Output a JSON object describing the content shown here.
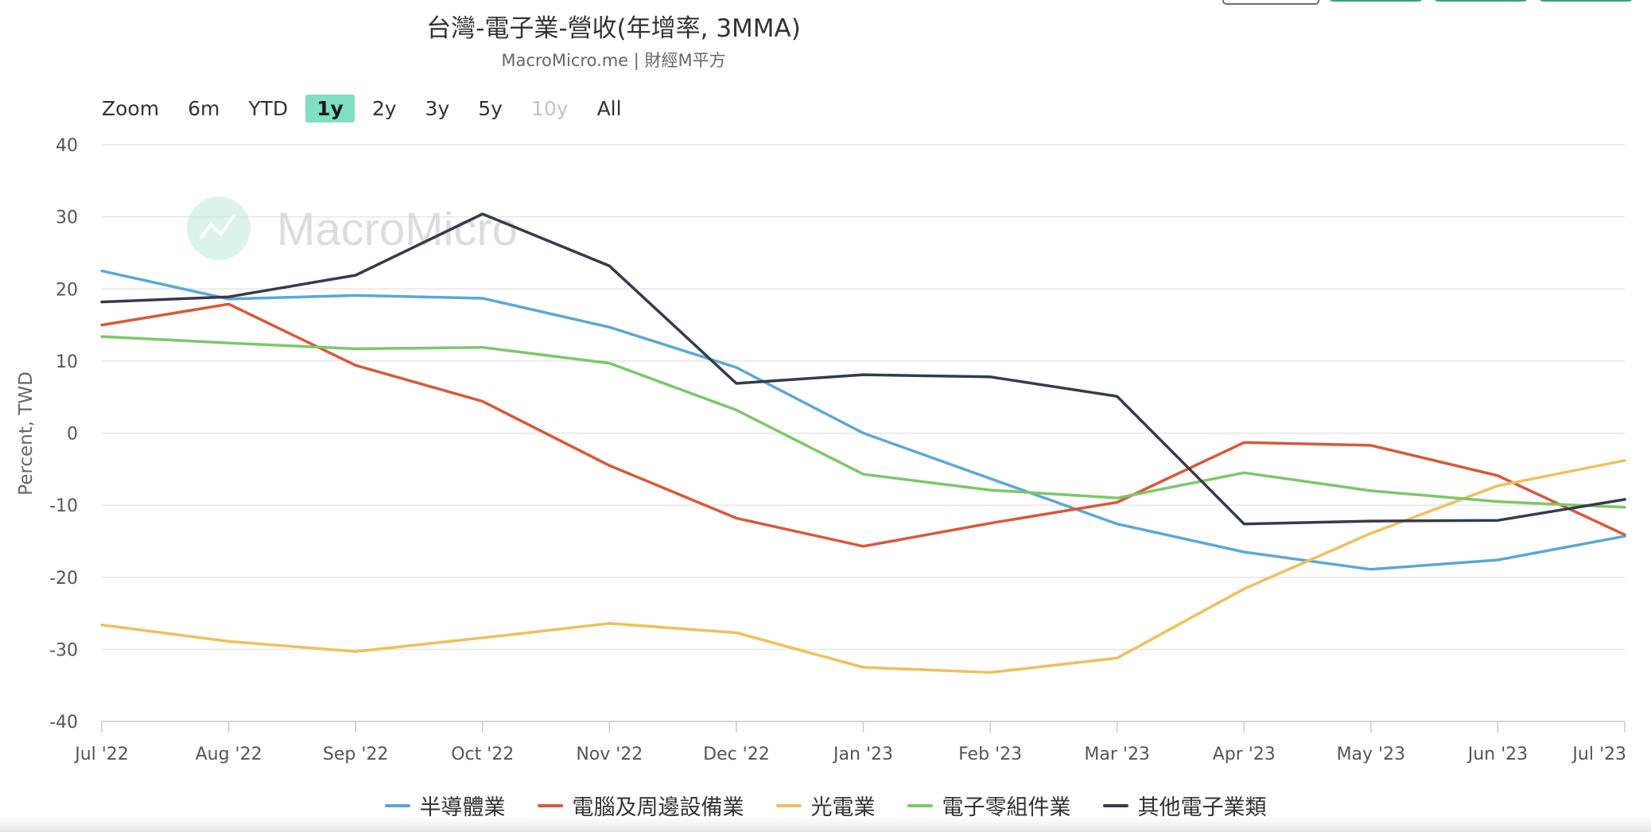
{
  "title": "台灣-電子業-營收(年增率, 3MMA)",
  "subtitle": "MacroMicro.me | 財經M平方",
  "watermark": "MacroMicro",
  "zoom": {
    "label": "Zoom",
    "buttons": [
      {
        "label": "6m",
        "state": "normal"
      },
      {
        "label": "YTD",
        "state": "normal"
      },
      {
        "label": "1y",
        "state": "active"
      },
      {
        "label": "2y",
        "state": "normal"
      },
      {
        "label": "3y",
        "state": "normal"
      },
      {
        "label": "5y",
        "state": "normal"
      },
      {
        "label": "10y",
        "state": "disabled"
      },
      {
        "label": "All",
        "state": "normal"
      }
    ]
  },
  "chart_data": {
    "type": "line",
    "title": "台灣-電子業-營收(年增率, 3MMA)",
    "ylabel": "Percent, TWD",
    "xlabel": "",
    "ylim": [
      -40,
      40
    ],
    "yticks": [
      40,
      30,
      20,
      10,
      0,
      -10,
      -20,
      -30,
      -40
    ],
    "ytick_labels": [
      "40",
      "30",
      "20",
      "10",
      "0",
      "-10",
      "-20",
      "-30",
      "-40"
    ],
    "categories": [
      "Jul '22",
      "Aug '22",
      "Sep '22",
      "Oct '22",
      "Nov '22",
      "Dec '22",
      "Jan '23",
      "Feb '23",
      "Mar '23",
      "Apr '23",
      "May '23",
      "Jun '23",
      "Jul '23"
    ],
    "grid": true,
    "legend_position": "bottom-center",
    "series": [
      {
        "name": "半導體業",
        "color": "#5aa8d6",
        "values": [
          22.5,
          18.6,
          19.1,
          18.7,
          14.7,
          9.1,
          0.0,
          -6.3,
          -12.6,
          -16.5,
          -18.9,
          -17.6,
          -14.3
        ]
      },
      {
        "name": "電腦及周邊設備業",
        "color": "#d9583b",
        "values": [
          15.0,
          17.9,
          9.4,
          4.4,
          -4.5,
          -11.8,
          -15.7,
          -12.5,
          -9.6,
          -1.3,
          -1.7,
          -5.9,
          -14.1
        ]
      },
      {
        "name": "光電業",
        "color": "#eec05c",
        "values": [
          -26.6,
          -28.9,
          -30.3,
          -28.4,
          -26.4,
          -27.7,
          -32.5,
          -33.2,
          -31.2,
          -21.6,
          -13.9,
          -7.3,
          -3.8
        ]
      },
      {
        "name": "電子零組件業",
        "color": "#7cc76a",
        "values": [
          13.4,
          12.5,
          11.7,
          11.9,
          9.7,
          3.2,
          -5.7,
          -7.9,
          -9.0,
          -5.5,
          -8.0,
          -9.5,
          -10.3
        ]
      },
      {
        "name": "其他電子業類",
        "color": "#363a4c",
        "values": [
          18.2,
          18.9,
          21.9,
          30.4,
          23.2,
          6.9,
          8.1,
          7.8,
          5.1,
          -12.6,
          -12.2,
          -12.1,
          -9.2
        ]
      }
    ]
  }
}
